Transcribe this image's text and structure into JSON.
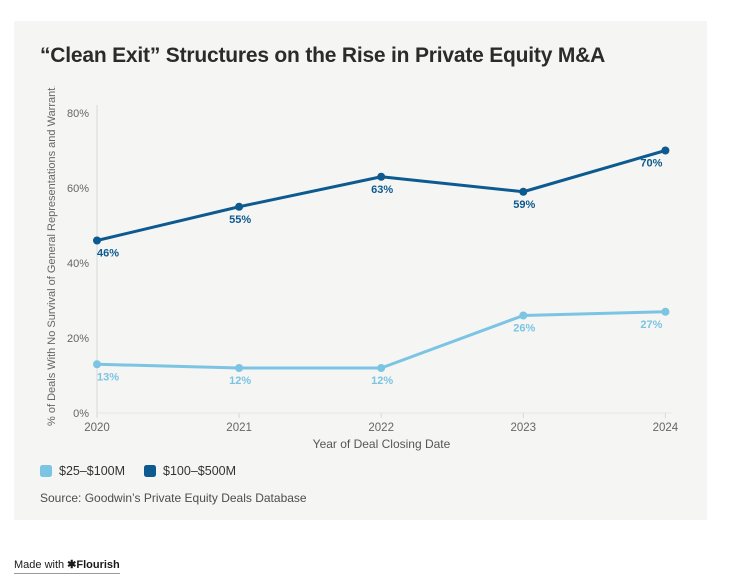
{
  "title": "“Clean Exit” Structures on the Rise in Private Equity M&A",
  "source": "Source: Goodwin’s Private Equity Deals Database",
  "footer": {
    "made_with": "Made with",
    "logo_glyph": "✱",
    "brand": "Flourish"
  },
  "colors": {
    "card_background": "#f5f5f3",
    "page_background": "#ffffff",
    "axis_line": "#d9d9d9",
    "axis_text": "#666666",
    "light_blue": "#7cc4e3",
    "dark_blue": "#0d5a90"
  },
  "chart_data": {
    "type": "line",
    "title": "“Clean Exit” Structures on the Rise in Private Equity M&A",
    "categories": [
      "2020",
      "2021",
      "2022",
      "2023",
      "2024"
    ],
    "series": [
      {
        "name": "$25–$100M",
        "color": "#7cc4e3",
        "values": [
          13,
          12,
          12,
          26,
          27
        ]
      },
      {
        "name": "$100–$500M",
        "color": "#0d5a90",
        "values": [
          46,
          55,
          63,
          59,
          70
        ]
      }
    ],
    "xlabel": "Year of Deal Closing Date",
    "ylabel": "% of Deals With No Survival of General Representations and Warrant…",
    "ylim": [
      0,
      80
    ],
    "yticks": [
      0,
      20,
      40,
      60,
      80
    ],
    "ytick_format": "percent",
    "data_labels": true,
    "grid": false,
    "legend_position": "bottom-left"
  }
}
